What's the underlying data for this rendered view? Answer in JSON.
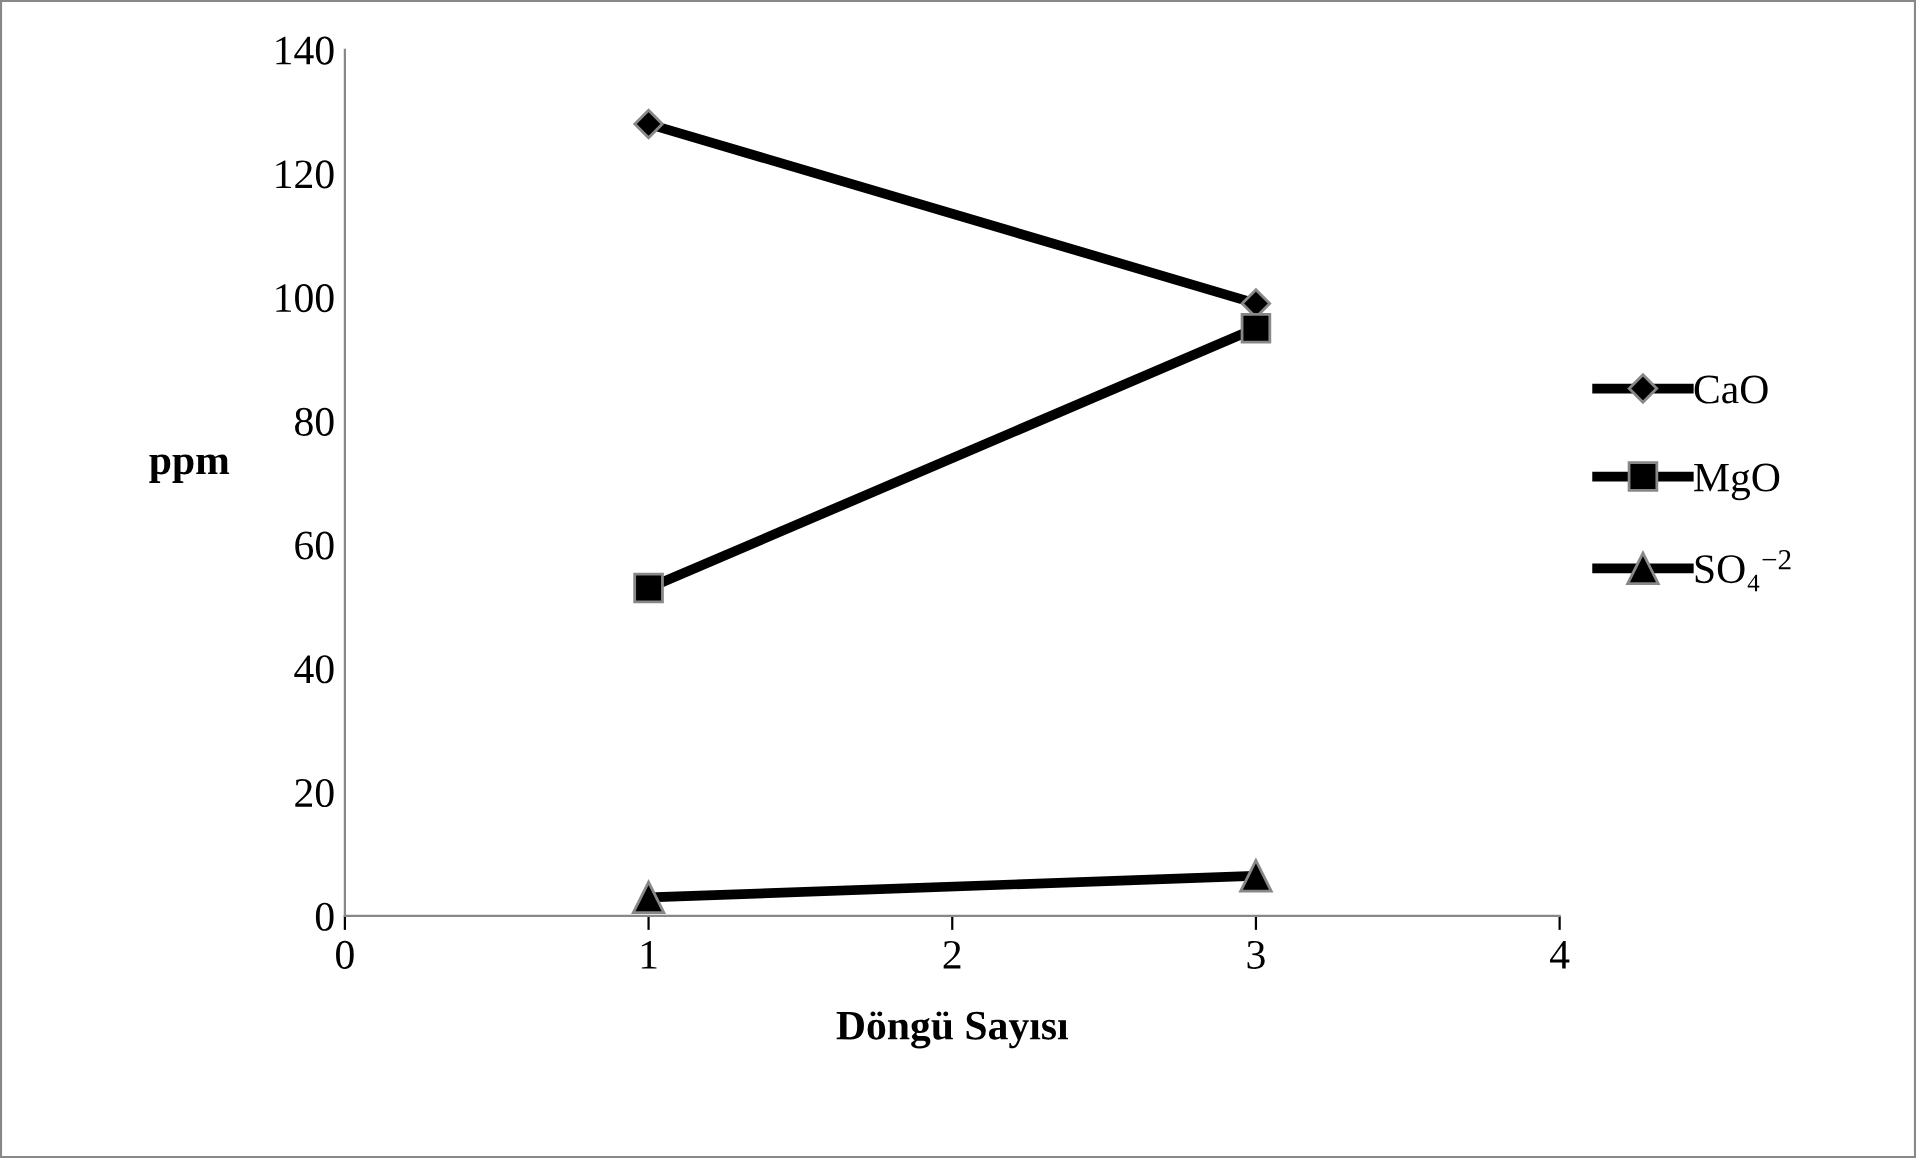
{
  "chart_data": {
    "type": "line",
    "xlabel": "Döngü Sayısı",
    "ylabel": "ppm",
    "x": [
      1,
      3
    ],
    "series": [
      {
        "name": "CaO",
        "color": "#000000",
        "values": [
          128,
          99
        ],
        "marker": "diamond"
      },
      {
        "name": "MgO",
        "color": "#000000",
        "values": [
          53,
          95
        ],
        "marker": "square"
      },
      {
        "name": "SO₄$^{−2}$",
        "color": "#000000",
        "values": [
          3,
          6.5
        ],
        "marker": "triangle"
      }
    ],
    "xlim": [
      0,
      4
    ],
    "xticks": [
      0,
      1,
      2,
      3,
      4
    ],
    "ylim": [
      0,
      140
    ],
    "yticks": [
      0,
      20,
      40,
      60,
      80,
      100,
      120,
      140
    ],
    "grid": false,
    "legend": "right",
    "line_style": "solid"
  }
}
